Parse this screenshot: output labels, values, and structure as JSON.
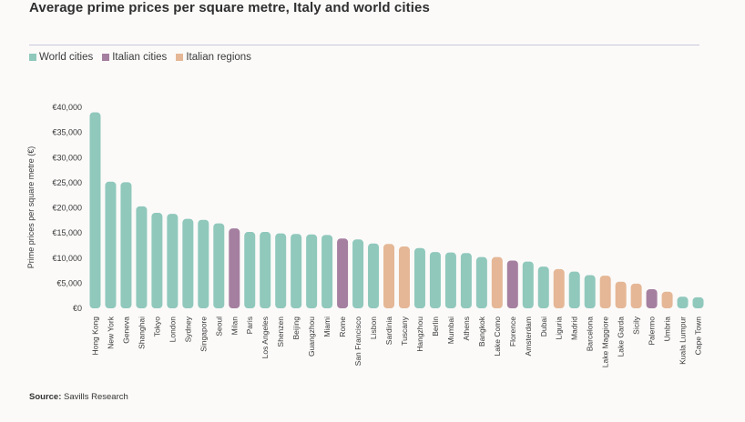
{
  "title": "Average prime prices per square metre, Italy and world cities",
  "legend": {
    "world": "World cities",
    "italian_cities": "Italian cities",
    "italian_regions": "Italian regions"
  },
  "colors": {
    "world": "#90c8bc",
    "italian_cities": "#a57fa0",
    "italian_regions": "#e5b796"
  },
  "source": {
    "label": "Source:",
    "text": "Savills Research"
  },
  "chart_data": {
    "type": "bar",
    "ylabel": "Prime prices per square metre (€)",
    "xlabel": "",
    "ylim": [
      0,
      40000
    ],
    "yticks": [
      0,
      5000,
      10000,
      15000,
      20000,
      25000,
      30000,
      35000,
      40000
    ],
    "ytick_labels": [
      "€0",
      "€5,000",
      "€10,000",
      "€15,000",
      "€20,000",
      "€25,000",
      "€30,000",
      "€35,000",
      "€40,000"
    ],
    "grid": false,
    "categories": [
      "Hong Kong",
      "New York",
      "Geneva",
      "Shanghai",
      "Tokyo",
      "London",
      "Sydney",
      "Singapore",
      "Seoul",
      "Milan",
      "Paris",
      "Los Angeles",
      "Shenzen",
      "Beijing",
      "Guangzhou",
      "Miami",
      "Rome",
      "San Francisco",
      "Lisbon",
      "Sardinia",
      "Tuscany",
      "Hangzhou",
      "Berlin",
      "Mumbai",
      "Athens",
      "Bangkok",
      "Lake Como",
      "Florence",
      "Amsterdam",
      "Dubai",
      "Liguria",
      "Madrid",
      "Barcelona",
      "Lake Maggiore",
      "Lake Garda",
      "Sicily",
      "Palermo",
      "Umbria",
      "Kuala Lumpur",
      "Cape Town"
    ],
    "values": [
      39000,
      25200,
      25100,
      20300,
      19000,
      18800,
      17800,
      17600,
      16900,
      15900,
      15200,
      15200,
      14900,
      14800,
      14700,
      14600,
      13900,
      13700,
      12900,
      12800,
      12300,
      12000,
      11200,
      11100,
      11000,
      10200,
      10200,
      9500,
      9300,
      8300,
      7800,
      7300,
      6600,
      6500,
      5300,
      4900,
      3800,
      3300,
      2300,
      2200
    ],
    "groups": [
      "world",
      "world",
      "world",
      "world",
      "world",
      "world",
      "world",
      "world",
      "world",
      "italian_cities",
      "world",
      "world",
      "world",
      "world",
      "world",
      "world",
      "italian_cities",
      "world",
      "world",
      "italian_regions",
      "italian_regions",
      "world",
      "world",
      "world",
      "world",
      "world",
      "italian_regions",
      "italian_cities",
      "world",
      "world",
      "italian_regions",
      "world",
      "world",
      "italian_regions",
      "italian_regions",
      "italian_regions",
      "italian_cities",
      "italian_regions",
      "world",
      "world"
    ]
  }
}
